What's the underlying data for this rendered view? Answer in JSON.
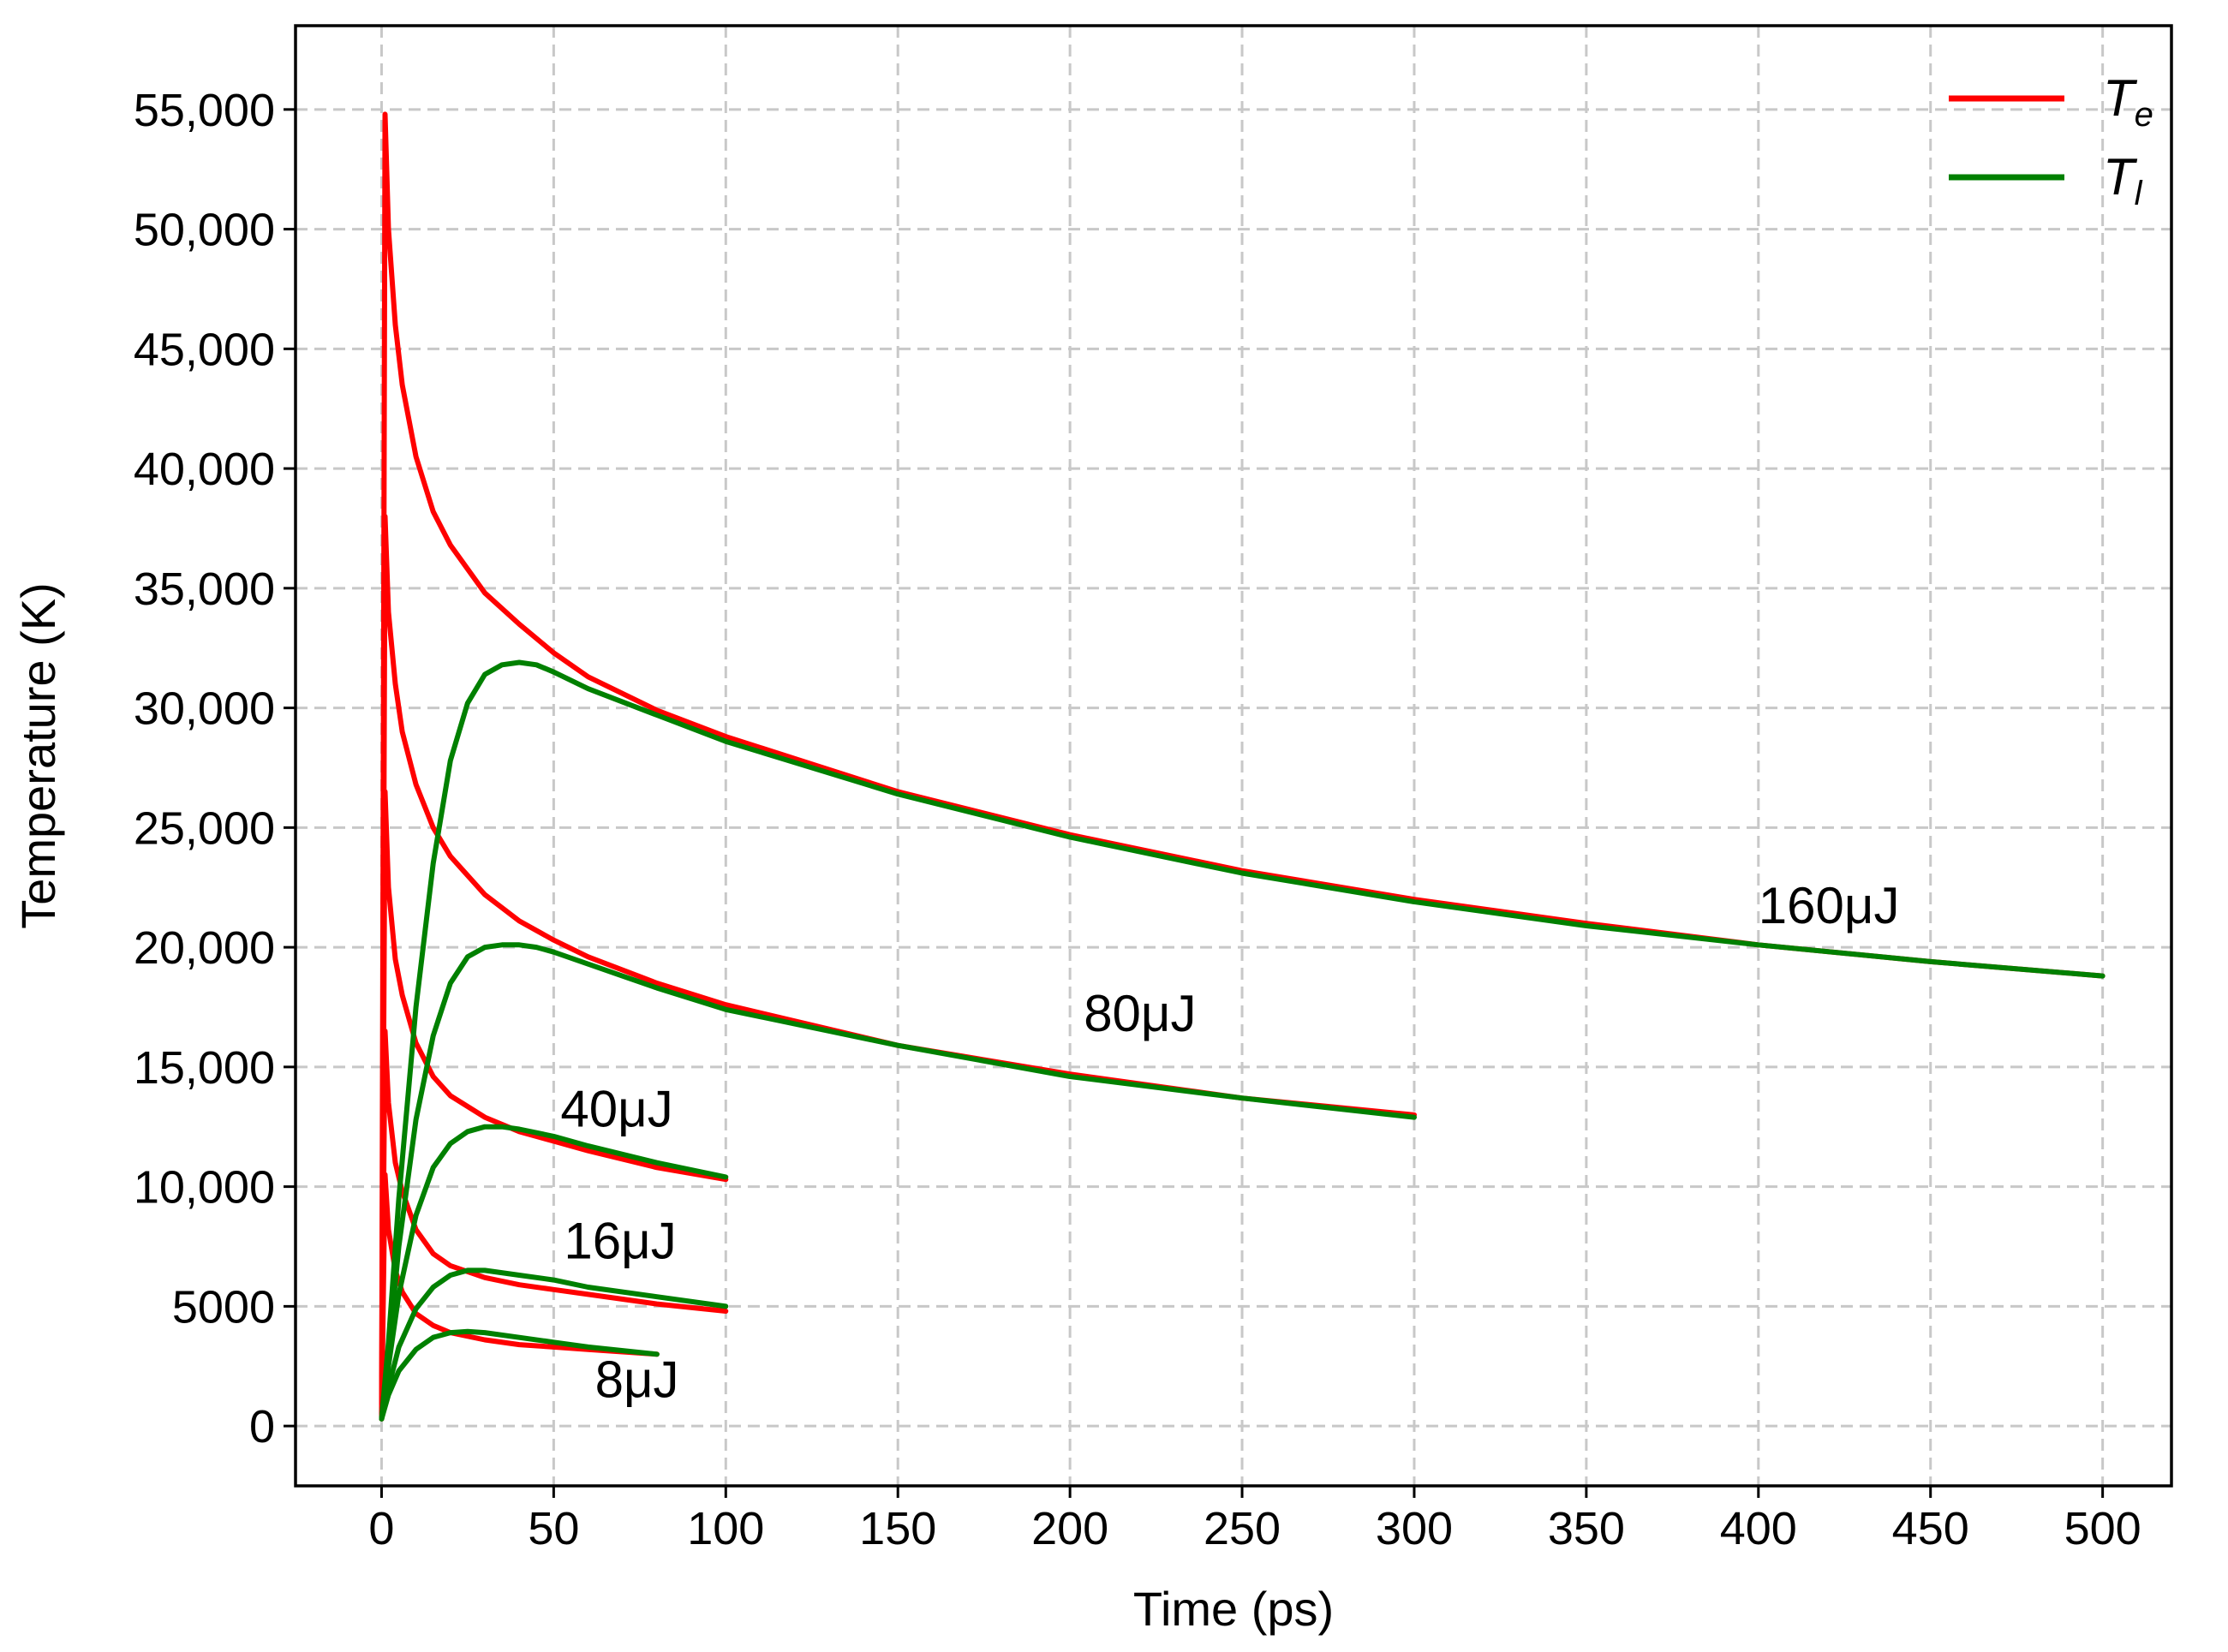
{
  "chart_data": {
    "type": "line",
    "title": "",
    "xlabel": "Time (ps)",
    "ylabel": "Temperature (K)",
    "xlim": [
      -25,
      520
    ],
    "ylim": [
      -2500,
      58500
    ],
    "xticks": [
      0,
      50,
      100,
      150,
      200,
      250,
      300,
      350,
      400,
      450,
      500
    ],
    "yticks": [
      0,
      5000,
      10000,
      15000,
      20000,
      25000,
      30000,
      35000,
      40000,
      45000,
      50000,
      55000
    ],
    "ytick_labels": [
      "0",
      "5000",
      "10,000",
      "15,000",
      "20,000",
      "25,000",
      "30,000",
      "35,000",
      "40,000",
      "45,000",
      "50,000",
      "55,000"
    ],
    "grid": true,
    "legend_position": "top-right",
    "legend": [
      {
        "label": "T",
        "subscript": "e",
        "color": "#ff0000"
      },
      {
        "label": "T",
        "subscript": "l",
        "color": "#008000"
      }
    ],
    "colors": {
      "electron": "#ff0000",
      "lattice": "#008000"
    },
    "annotations": [
      {
        "text": "160μJ",
        "x": 400,
        "y": 21000
      },
      {
        "text": "80μJ",
        "x": 204,
        "y": 16500
      },
      {
        "text": "40μJ",
        "x": 52,
        "y": 12500
      },
      {
        "text": "16μJ",
        "x": 53,
        "y": 7000
      },
      {
        "text": "8μJ",
        "x": 62,
        "y": 1200
      }
    ],
    "series": [
      {
        "name": "T_e 160μJ",
        "kind": "Te",
        "x": [
          0,
          1,
          2,
          4,
          6,
          10,
          15,
          20,
          30,
          40,
          50,
          60,
          80,
          100,
          150,
          200,
          250,
          300,
          350,
          400,
          450,
          500
        ],
        "y": [
          300,
          54800,
          50000,
          46000,
          43500,
          40500,
          38200,
          36800,
          34800,
          33500,
          32300,
          31300,
          29900,
          28800,
          26500,
          24700,
          23200,
          22000,
          21000,
          20100,
          19400,
          18800
        ]
      },
      {
        "name": "T_l 160μJ",
        "kind": "Tl",
        "x": [
          0,
          2,
          5,
          10,
          15,
          20,
          25,
          30,
          35,
          40,
          45,
          50,
          60,
          80,
          100,
          150,
          200,
          250,
          300,
          350,
          400,
          450,
          500
        ],
        "y": [
          300,
          3500,
          9500,
          17500,
          23500,
          27800,
          30200,
          31400,
          31800,
          31900,
          31800,
          31500,
          30800,
          29700,
          28600,
          26400,
          24600,
          23100,
          21900,
          20900,
          20100,
          19400,
          18800
        ]
      },
      {
        "name": "T_e 80μJ",
        "kind": "Te",
        "x": [
          0,
          1,
          2,
          4,
          6,
          10,
          15,
          20,
          30,
          40,
          50,
          60,
          80,
          100,
          150,
          200,
          250,
          300
        ],
        "y": [
          300,
          38000,
          34000,
          31000,
          29000,
          26800,
          25000,
          23800,
          22200,
          21100,
          20300,
          19600,
          18500,
          17600,
          15900,
          14700,
          13700,
          13000
        ]
      },
      {
        "name": "T_l 80μJ",
        "kind": "Tl",
        "x": [
          0,
          2,
          5,
          10,
          15,
          20,
          25,
          30,
          35,
          40,
          45,
          50,
          60,
          80,
          100,
          150,
          200,
          250,
          300
        ],
        "y": [
          300,
          3000,
          7500,
          12800,
          16300,
          18500,
          19600,
          20000,
          20100,
          20100,
          20000,
          19800,
          19300,
          18300,
          17400,
          15900,
          14600,
          13700,
          12900
        ]
      },
      {
        "name": "T_e 40μJ",
        "kind": "Te",
        "x": [
          0,
          1,
          2,
          4,
          6,
          10,
          15,
          20,
          30,
          40,
          50,
          60,
          80,
          100
        ],
        "y": [
          300,
          26500,
          22500,
          19500,
          18000,
          16000,
          14600,
          13800,
          12900,
          12300,
          11900,
          11500,
          10800,
          10300
        ]
      },
      {
        "name": "T_l 40μJ",
        "kind": "Tl",
        "x": [
          0,
          2,
          5,
          10,
          15,
          20,
          25,
          30,
          35,
          40,
          50,
          60,
          80,
          100
        ],
        "y": [
          300,
          2500,
          5500,
          8800,
          10800,
          11800,
          12300,
          12500,
          12500,
          12400,
          12100,
          11700,
          11000,
          10400
        ]
      },
      {
        "name": "T_e 16μJ",
        "kind": "Te",
        "x": [
          0,
          1,
          2,
          4,
          6,
          10,
          15,
          20,
          30,
          40,
          50,
          60,
          80,
          100
        ],
        "y": [
          300,
          16500,
          13500,
          11000,
          9800,
          8200,
          7200,
          6700,
          6200,
          5900,
          5700,
          5500,
          5100,
          4800
        ]
      },
      {
        "name": "T_l 16μJ",
        "kind": "Tl",
        "x": [
          0,
          2,
          5,
          10,
          15,
          20,
          25,
          30,
          40,
          50,
          60,
          80,
          100
        ],
        "y": [
          300,
          1600,
          3300,
          4900,
          5800,
          6300,
          6500,
          6500,
          6300,
          6100,
          5800,
          5400,
          5000
        ]
      },
      {
        "name": "T_e 8μJ",
        "kind": "Te",
        "x": [
          0,
          1,
          2,
          4,
          6,
          10,
          15,
          20,
          30,
          40,
          50,
          60,
          80
        ],
        "y": [
          300,
          10500,
          8200,
          6500,
          5600,
          4700,
          4200,
          3900,
          3600,
          3400,
          3300,
          3200,
          3000
        ]
      },
      {
        "name": "T_l 8μJ",
        "kind": "Tl",
        "x": [
          0,
          2,
          5,
          10,
          15,
          20,
          25,
          30,
          40,
          50,
          60,
          80
        ],
        "y": [
          300,
          1300,
          2300,
          3200,
          3700,
          3900,
          3950,
          3900,
          3700,
          3500,
          3300,
          3000
        ]
      }
    ]
  }
}
